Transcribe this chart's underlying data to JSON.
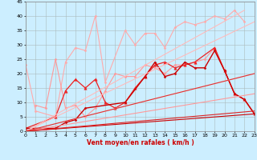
{
  "xlabel": "Vent moyen/en rafales ( km/h )",
  "xlim": [
    0,
    23
  ],
  "ylim": [
    0,
    45
  ],
  "yticks": [
    0,
    5,
    10,
    15,
    20,
    25,
    30,
    35,
    40,
    45
  ],
  "xticks": [
    0,
    1,
    2,
    3,
    4,
    5,
    6,
    7,
    8,
    9,
    10,
    11,
    12,
    13,
    14,
    15,
    16,
    17,
    18,
    19,
    20,
    21,
    22,
    23
  ],
  "bg_color": "#cceeff",
  "grid_color": "#aabbbb",
  "series": [
    {
      "x": [
        0,
        1,
        3,
        4,
        5,
        6,
        7,
        8,
        10,
        11,
        12,
        13,
        14,
        15,
        16,
        17,
        18,
        19,
        20,
        21,
        22
      ],
      "y": [
        23,
        7,
        5,
        24,
        29,
        28,
        40,
        17,
        35,
        30,
        34,
        34,
        29,
        36,
        38,
        37,
        38,
        40,
        39,
        42,
        38
      ],
      "color": "#ffaaaa",
      "lw": 0.8,
      "marker": "D",
      "ms": 1.5
    },
    {
      "x": [
        1,
        2,
        3,
        4,
        5,
        6,
        7,
        8,
        9,
        10,
        11,
        12,
        13,
        14,
        15,
        16,
        17,
        18,
        19,
        20,
        21,
        22,
        23
      ],
      "y": [
        9,
        8,
        25,
        8,
        9,
        5,
        8,
        14,
        20,
        19,
        19,
        23,
        22,
        20,
        23,
        23,
        24,
        25,
        29,
        21,
        13,
        11,
        6
      ],
      "color": "#ff9999",
      "lw": 0.8,
      "marker": "D",
      "ms": 1.5
    },
    {
      "x": [
        0,
        3,
        4,
        5,
        6,
        7,
        8,
        9,
        10,
        11,
        12,
        13,
        14,
        15,
        16,
        17,
        19,
        20,
        21,
        22,
        23
      ],
      "y": [
        1,
        5,
        14,
        18,
        15,
        18,
        10,
        8,
        10,
        15,
        19,
        23,
        24,
        22,
        23,
        24,
        29,
        21,
        13,
        11,
        6
      ],
      "color": "#ee2222",
      "lw": 0.9,
      "marker": "^",
      "ms": 2.5
    },
    {
      "x": [
        0,
        3,
        4,
        5,
        6,
        10,
        12,
        13,
        14,
        15,
        16,
        17,
        18,
        19,
        20,
        21,
        22,
        23
      ],
      "y": [
        1,
        1,
        3,
        4,
        8,
        10,
        19,
        24,
        19,
        20,
        24,
        22,
        22,
        28,
        21,
        13,
        11,
        6
      ],
      "color": "#cc0000",
      "lw": 1.0,
      "marker": "D",
      "ms": 1.5
    },
    {
      "x": [
        0,
        22
      ],
      "y": [
        0,
        42
      ],
      "color": "#ffbbbb",
      "lw": 0.8,
      "marker": null,
      "ms": 0
    },
    {
      "x": [
        0,
        23
      ],
      "y": [
        0,
        38
      ],
      "color": "#ffbbbb",
      "lw": 0.8,
      "marker": null,
      "ms": 0
    },
    {
      "x": [
        0,
        23
      ],
      "y": [
        0,
        20
      ],
      "color": "#ffcccc",
      "lw": 0.8,
      "marker": null,
      "ms": 0
    },
    {
      "x": [
        0,
        23
      ],
      "y": [
        0,
        13
      ],
      "color": "#ff9999",
      "lw": 0.8,
      "marker": null,
      "ms": 0
    },
    {
      "x": [
        0,
        23
      ],
      "y": [
        0,
        20
      ],
      "color": "#dd3333",
      "lw": 0.8,
      "marker": null,
      "ms": 0
    },
    {
      "x": [
        0,
        23
      ],
      "y": [
        0,
        6
      ],
      "color": "#cc0000",
      "lw": 0.8,
      "marker": null,
      "ms": 0
    },
    {
      "x": [
        0,
        23
      ],
      "y": [
        0,
        7
      ],
      "color": "#dd2222",
      "lw": 0.8,
      "marker": null,
      "ms": 0
    }
  ]
}
